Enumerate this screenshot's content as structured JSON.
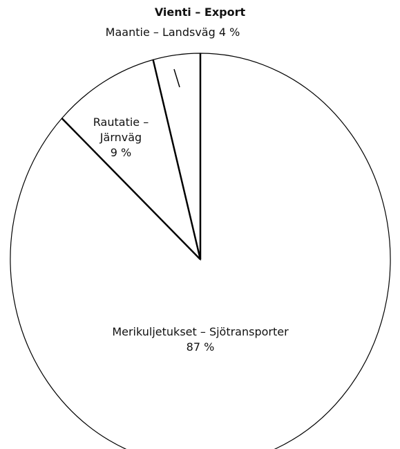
{
  "chart_data": {
    "type": "pie",
    "title": "Vienti – Export",
    "categories": [
      "Maantie – Landsväg",
      "Rautatie – Järnväg",
      "Merikuljetukset – Sjötransporter"
    ],
    "values": [
      4,
      9,
      87
    ],
    "value_labels": [
      "4 %",
      "9 %",
      "87 %"
    ],
    "color": "#000000"
  }
}
